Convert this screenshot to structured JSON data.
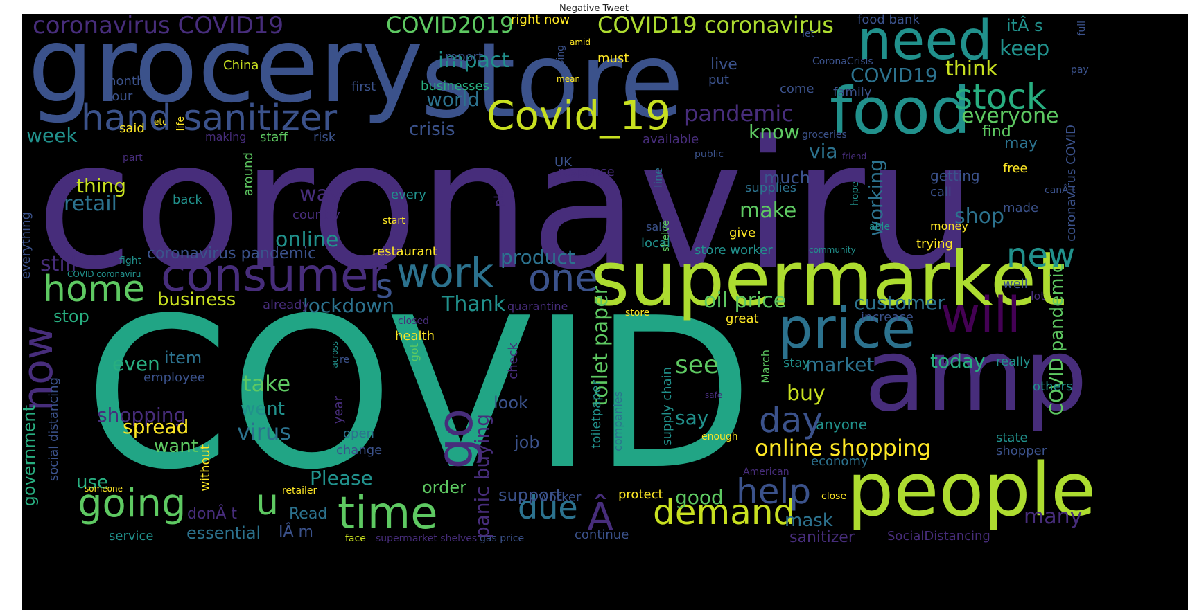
{
  "title": "Negative Tweet",
  "palette": {
    "purple": "#472d7b",
    "blue": "#3b528b",
    "teal": "#2c728e",
    "green": "#21918c",
    "seagreen": "#28ae80",
    "lime": "#5ec962",
    "yellowgreen": "#addc30",
    "yellow": "#fde725",
    "darkpurple": "#440154"
  },
  "words": [
    {
      "text": "coronaviru",
      "color": "#472d7b"
    },
    {
      "text": "COVID",
      "color": "#21a585"
    },
    {
      "text": "grocery",
      "color": "#3b528b"
    },
    {
      "text": "store",
      "color": "#3b528b"
    },
    {
      "text": "supermarket",
      "color": "#addc30"
    },
    {
      "text": "amp",
      "color": "#472d7b"
    },
    {
      "text": "people",
      "color": "#addc30"
    },
    {
      "text": "food",
      "color": "#21918c"
    },
    {
      "text": "need",
      "color": "#21918c"
    },
    {
      "text": "price",
      "color": "#2c728e"
    },
    {
      "text": "will",
      "color": "#440154"
    },
    {
      "text": "consumer",
      "color": "#472d7b"
    },
    {
      "text": "hand sanitizer",
      "color": "#3b528b"
    },
    {
      "text": "Covid_19",
      "color": "#c8e020"
    },
    {
      "text": "time",
      "color": "#5ec962"
    },
    {
      "text": "work",
      "color": "#2c728e"
    },
    {
      "text": "home",
      "color": "#5ec962"
    },
    {
      "text": "going",
      "color": "#5ec962"
    },
    {
      "text": "one",
      "color": "#3b528b"
    },
    {
      "text": "demand",
      "color": "#c8e020"
    },
    {
      "text": "due",
      "color": "#2c728e"
    },
    {
      "text": "stock",
      "color": "#28ae80"
    },
    {
      "text": "new",
      "color": "#21918c"
    },
    {
      "text": "day",
      "color": "#3b528b"
    },
    {
      "text": "help",
      "color": "#3b528b"
    },
    {
      "text": "go",
      "color": "#472d7b"
    },
    {
      "text": "now",
      "color": "#472d7b"
    },
    {
      "text": "u",
      "color": "#5ec962"
    },
    {
      "text": "Â",
      "color": "#472d7b"
    },
    {
      "text": "s",
      "color": "#3b528b"
    },
    {
      "text": "coronavirus COVID19",
      "color": "#472d7b"
    },
    {
      "text": "COVID19 coronavirus",
      "color": "#addc30"
    },
    {
      "text": "COVID2019",
      "color": "#5ec962"
    },
    {
      "text": "impact",
      "color": "#21918c"
    },
    {
      "text": "pandemic",
      "color": "#472d7b"
    },
    {
      "text": "keep",
      "color": "#21918c"
    },
    {
      "text": "itÂ s",
      "color": "#21918c"
    },
    {
      "text": "COVID19",
      "color": "#2c728e"
    },
    {
      "text": "think",
      "color": "#c8e020"
    },
    {
      "text": "everyone",
      "color": "#5ec962"
    },
    {
      "text": "world",
      "color": "#2c728e"
    },
    {
      "text": "crisis",
      "color": "#3b528b"
    },
    {
      "text": "know",
      "color": "#5ec962"
    },
    {
      "text": "via",
      "color": "#2c728e"
    },
    {
      "text": "find",
      "color": "#5ec962"
    },
    {
      "text": "may",
      "color": "#2c728e"
    },
    {
      "text": "week",
      "color": "#21918c"
    },
    {
      "text": "thing",
      "color": "#c8e020"
    },
    {
      "text": "retail",
      "color": "#2c728e"
    },
    {
      "text": "way",
      "color": "#472d7b"
    },
    {
      "text": "make",
      "color": "#5ec962"
    },
    {
      "text": "much",
      "color": "#3b528b"
    },
    {
      "text": "shop",
      "color": "#2c728e"
    },
    {
      "text": "online",
      "color": "#21918c"
    },
    {
      "text": "working",
      "color": "#2c728e"
    },
    {
      "text": "still",
      "color": "#472d7b"
    },
    {
      "text": "coronavirus pandemic",
      "color": "#3b528b"
    },
    {
      "text": "product",
      "color": "#2c728e"
    },
    {
      "text": "business",
      "color": "#c8e020"
    },
    {
      "text": "lockdown",
      "color": "#2c728e"
    },
    {
      "text": "Thank",
      "color": "#21918c"
    },
    {
      "text": "oil price",
      "color": "#5ec962"
    },
    {
      "text": "customer",
      "color": "#2c728e"
    },
    {
      "text": "toilet paper",
      "color": "#5ec962"
    },
    {
      "text": "today",
      "color": "#28ae80"
    },
    {
      "text": "market",
      "color": "#2c728e"
    },
    {
      "text": "see",
      "color": "#5ec962"
    },
    {
      "text": "say",
      "color": "#21918c"
    },
    {
      "text": "buy",
      "color": "#c8e020"
    },
    {
      "text": "even",
      "color": "#28ae80"
    },
    {
      "text": "take",
      "color": "#5ec962"
    },
    {
      "text": "shopping",
      "color": "#472d7b"
    },
    {
      "text": "spread",
      "color": "#fde725"
    },
    {
      "text": "virus",
      "color": "#2c728e"
    },
    {
      "text": "went",
      "color": "#21918c"
    },
    {
      "text": "want",
      "color": "#5ec962"
    },
    {
      "text": "online shopping",
      "color": "#fde725"
    },
    {
      "text": "panic buying",
      "color": "#472d7b"
    },
    {
      "text": "Please",
      "color": "#21918c"
    },
    {
      "text": "order",
      "color": "#5ec962"
    },
    {
      "text": "support",
      "color": "#3b528b"
    },
    {
      "text": "good",
      "color": "#5ec962"
    },
    {
      "text": "mask",
      "color": "#2c728e"
    },
    {
      "text": "many",
      "color": "#472d7b"
    },
    {
      "text": "use",
      "color": "#28ae80"
    },
    {
      "text": "essential",
      "color": "#2c728e"
    },
    {
      "text": "IÂ m",
      "color": "#3b528b"
    },
    {
      "text": "Read",
      "color": "#2c728e"
    },
    {
      "text": "donÂ t",
      "color": "#472d7b"
    },
    {
      "text": "sanitizer",
      "color": "#472d7b"
    },
    {
      "text": "COVID pandemic",
      "color": "#5ec962"
    },
    {
      "text": "government",
      "color": "#28ae80"
    },
    {
      "text": "social distancing",
      "color": "#3b528b"
    },
    {
      "text": "everything",
      "color": "#3b528b"
    },
    {
      "text": "coronavirus COVID",
      "color": "#3b528b"
    },
    {
      "text": "food bank",
      "color": "#3b528b"
    },
    {
      "text": "right now",
      "color": "#fde725"
    },
    {
      "text": "report",
      "color": "#3b528b"
    },
    {
      "text": "must",
      "color": "#fde725"
    },
    {
      "text": "China",
      "color": "#c8e020"
    },
    {
      "text": "month",
      "color": "#3b528b"
    },
    {
      "text": "hour",
      "color": "#3b528b"
    },
    {
      "text": "businesses",
      "color": "#28ae80"
    },
    {
      "text": "first",
      "color": "#3b528b"
    },
    {
      "text": "live",
      "color": "#3b528b"
    },
    {
      "text": "put",
      "color": "#3b528b"
    },
    {
      "text": "come",
      "color": "#3b528b"
    },
    {
      "text": "family",
      "color": "#3b528b"
    },
    {
      "text": "CoronaCrisis",
      "color": "#3b528b"
    },
    {
      "text": "pay",
      "color": "#3b528b"
    },
    {
      "text": "full",
      "color": "#3b528b"
    },
    {
      "text": "let",
      "color": "#3b528b"
    },
    {
      "text": "using",
      "color": "#3b528b"
    },
    {
      "text": "mean",
      "color": "#fde725"
    },
    {
      "text": "amid",
      "color": "#fde725"
    },
    {
      "text": "life",
      "color": "#fde725"
    },
    {
      "text": "etc",
      "color": "#fde725"
    },
    {
      "text": "said",
      "color": "#fde725"
    },
    {
      "text": "making",
      "color": "#472d7b"
    },
    {
      "text": "staff",
      "color": "#5ec962"
    },
    {
      "text": "risk",
      "color": "#3b528b"
    },
    {
      "text": "available",
      "color": "#472d7b"
    },
    {
      "text": "UK",
      "color": "#3b528b"
    },
    {
      "text": "groceries",
      "color": "#3b528b"
    },
    {
      "text": "public",
      "color": "#3b528b"
    },
    {
      "text": "friend",
      "color": "#472d7b"
    },
    {
      "text": "part",
      "color": "#472d7b"
    },
    {
      "text": "around",
      "color": "#5ec962"
    },
    {
      "text": "response",
      "color": "#472d7b"
    },
    {
      "text": "line",
      "color": "#2c728e"
    },
    {
      "text": "supplies",
      "color": "#2c728e"
    },
    {
      "text": "getting",
      "color": "#3b528b"
    },
    {
      "text": "free",
      "color": "#fde725"
    },
    {
      "text": "call",
      "color": "#3b528b"
    },
    {
      "text": "canÂ t",
      "color": "#3b528b"
    },
    {
      "text": "back",
      "color": "#21918c"
    },
    {
      "text": "every",
      "color": "#21918c"
    },
    {
      "text": "country",
      "color": "#472d7b"
    },
    {
      "text": "start",
      "color": "#fde725"
    },
    {
      "text": "place",
      "color": "#472d7b"
    },
    {
      "text": "sale",
      "color": "#3b528b"
    },
    {
      "text": "hope",
      "color": "#21918c"
    },
    {
      "text": "shelve",
      "color": "#5ec962"
    },
    {
      "text": "able",
      "color": "#21918c"
    },
    {
      "text": "made",
      "color": "#3b528b"
    },
    {
      "text": "money",
      "color": "#fde725"
    },
    {
      "text": "give",
      "color": "#fde725"
    },
    {
      "text": "local",
      "color": "#21918c"
    },
    {
      "text": "store worker",
      "color": "#21918c"
    },
    {
      "text": "community",
      "color": "#21918c"
    },
    {
      "text": "trying",
      "color": "#fde725"
    },
    {
      "text": "restaurant",
      "color": "#fde725"
    },
    {
      "text": "fight",
      "color": "#21918c"
    },
    {
      "text": "COVID coronaviru",
      "color": "#21918c"
    },
    {
      "text": "well",
      "color": "#3b528b"
    },
    {
      "text": "lot",
      "color": "#472d7b"
    },
    {
      "text": "already",
      "color": "#472d7b"
    },
    {
      "text": "quarantine",
      "color": "#472d7b"
    },
    {
      "text": "store",
      "color": "#fde725"
    },
    {
      "text": "closed",
      "color": "#472d7b"
    },
    {
      "text": "great",
      "color": "#fde725"
    },
    {
      "text": "increase",
      "color": "#3b528b"
    },
    {
      "text": "stop",
      "color": "#28ae80"
    },
    {
      "text": "item",
      "color": "#2c728e"
    },
    {
      "text": "employee",
      "color": "#3b528b"
    },
    {
      "text": "health",
      "color": "#fde725"
    },
    {
      "text": "across",
      "color": "#21918c"
    },
    {
      "text": "re",
      "color": "#3b528b"
    },
    {
      "text": "got",
      "color": "#5ec962"
    },
    {
      "text": "check",
      "color": "#472d7b"
    },
    {
      "text": "look",
      "color": "#3b528b"
    },
    {
      "text": "March",
      "color": "#5ec962"
    },
    {
      "text": "stay",
      "color": "#21918c"
    },
    {
      "text": "really",
      "color": "#21918c"
    },
    {
      "text": "others",
      "color": "#21918c"
    },
    {
      "text": "toiletpaper",
      "color": "#21918c"
    },
    {
      "text": "companies",
      "color": "#2c728e"
    },
    {
      "text": "supply chain",
      "color": "#21918c"
    },
    {
      "text": "safe",
      "color": "#472d7b"
    },
    {
      "text": "anyone",
      "color": "#21918c"
    },
    {
      "text": "enough",
      "color": "#fde725"
    },
    {
      "text": "state",
      "color": "#21918c"
    },
    {
      "text": "shopper",
      "color": "#3b528b"
    },
    {
      "text": "year",
      "color": "#472d7b"
    },
    {
      "text": "open",
      "color": "#2c728e"
    },
    {
      "text": "change",
      "color": "#3b528b"
    },
    {
      "text": "job",
      "color": "#3b528b"
    },
    {
      "text": "without",
      "color": "#fde725"
    },
    {
      "text": "economy",
      "color": "#2c728e"
    },
    {
      "text": "American",
      "color": "#472d7b"
    },
    {
      "text": "someone",
      "color": "#fde725"
    },
    {
      "text": "retailer",
      "color": "#fde725"
    },
    {
      "text": "protect",
      "color": "#fde725"
    },
    {
      "text": "close",
      "color": "#fde725"
    },
    {
      "text": "worker",
      "color": "#3b528b"
    },
    {
      "text": "service",
      "color": "#21918c"
    },
    {
      "text": "face",
      "color": "#c8e020"
    },
    {
      "text": "supermarket shelves",
      "color": "#472d7b"
    },
    {
      "text": "gas price",
      "color": "#3b528b"
    },
    {
      "text": "continue",
      "color": "#3b528b"
    },
    {
      "text": "SocialDistancing",
      "color": "#472d7b"
    }
  ]
}
